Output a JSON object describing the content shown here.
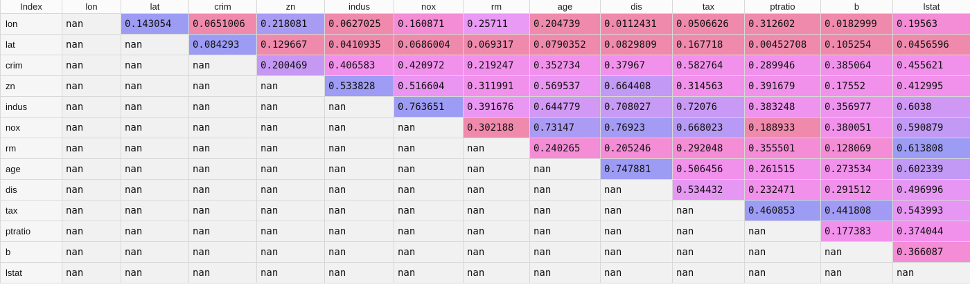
{
  "table": {
    "index_header": "Index",
    "columns": [
      "lon",
      "lat",
      "crim",
      "zn",
      "indus",
      "nox",
      "rm",
      "age",
      "dis",
      "tax",
      "ptratio",
      "b",
      "lstat"
    ],
    "rows": [
      {
        "label": "lon",
        "cells": [
          {
            "v": "nan",
            "c": null
          },
          {
            "v": "0.143054",
            "c": "#9d9cf5"
          },
          {
            "v": "0.0651006",
            "c": "#f08aac"
          },
          {
            "v": "0.218081",
            "c": "#a89bf4"
          },
          {
            "v": "0.0627025",
            "c": "#f08aac"
          },
          {
            "v": "0.160871",
            "c": "#f48cd6"
          },
          {
            "v": "0.25711",
            "c": "#e89af4"
          },
          {
            "v": "0.204739",
            "c": "#f08aac"
          },
          {
            "v": "0.0112431",
            "c": "#f08aac"
          },
          {
            "v": "0.0506626",
            "c": "#f08aac"
          },
          {
            "v": "0.312602",
            "c": "#f08aac"
          },
          {
            "v": "0.0182999",
            "c": "#f08aac"
          },
          {
            "v": "0.19563",
            "c": "#f48cd6"
          }
        ]
      },
      {
        "label": "lat",
        "cells": [
          {
            "v": "nan",
            "c": null
          },
          {
            "v": "nan",
            "c": null
          },
          {
            "v": "0.084293",
            "c": "#9d9cf5"
          },
          {
            "v": "0.129667",
            "c": "#f08aac"
          },
          {
            "v": "0.0410935",
            "c": "#f08aac"
          },
          {
            "v": "0.0686004",
            "c": "#f08aac"
          },
          {
            "v": "0.069317",
            "c": "#f08aac"
          },
          {
            "v": "0.0790352",
            "c": "#f08aac"
          },
          {
            "v": "0.0829809",
            "c": "#f08aac"
          },
          {
            "v": "0.167718",
            "c": "#f08aac"
          },
          {
            "v": "0.00452708",
            "c": "#f08aac"
          },
          {
            "v": "0.105254",
            "c": "#f08aac"
          },
          {
            "v": "0.0456596",
            "c": "#f08aac"
          }
        ]
      },
      {
        "label": "crim",
        "cells": [
          {
            "v": "nan",
            "c": null
          },
          {
            "v": "nan",
            "c": null
          },
          {
            "v": "nan",
            "c": null
          },
          {
            "v": "0.200469",
            "c": "#c698f4"
          },
          {
            "v": "0.406583",
            "c": "#f291ec"
          },
          {
            "v": "0.420972",
            "c": "#f291ec"
          },
          {
            "v": "0.219247",
            "c": "#f291ec"
          },
          {
            "v": "0.352734",
            "c": "#f291ec"
          },
          {
            "v": "0.37967",
            "c": "#f291ec"
          },
          {
            "v": "0.582764",
            "c": "#f291ec"
          },
          {
            "v": "0.289946",
            "c": "#f291ec"
          },
          {
            "v": "0.385064",
            "c": "#f291ec"
          },
          {
            "v": "0.455621",
            "c": "#f291ec"
          }
        ]
      },
      {
        "label": "zn",
        "cells": [
          {
            "v": "nan",
            "c": null
          },
          {
            "v": "nan",
            "c": null
          },
          {
            "v": "nan",
            "c": null
          },
          {
            "v": "nan",
            "c": null
          },
          {
            "v": "0.533828",
            "c": "#9e9cf5"
          },
          {
            "v": "0.516604",
            "c": "#ea95f2"
          },
          {
            "v": "0.311991",
            "c": "#f291ec"
          },
          {
            "v": "0.569537",
            "c": "#ea95f2"
          },
          {
            "v": "0.664408",
            "c": "#c29af5"
          },
          {
            "v": "0.314563",
            "c": "#f291ec"
          },
          {
            "v": "0.391679",
            "c": "#f291ec"
          },
          {
            "v": "0.17552",
            "c": "#f291ec"
          },
          {
            "v": "0.412995",
            "c": "#f291ec"
          }
        ]
      },
      {
        "label": "indus",
        "cells": [
          {
            "v": "nan",
            "c": null
          },
          {
            "v": "nan",
            "c": null
          },
          {
            "v": "nan",
            "c": null
          },
          {
            "v": "nan",
            "c": null
          },
          {
            "v": "nan",
            "c": null
          },
          {
            "v": "0.763651",
            "c": "#9d9cf5"
          },
          {
            "v": "0.391676",
            "c": "#e997f2"
          },
          {
            "v": "0.644779",
            "c": "#d198f4"
          },
          {
            "v": "0.708027",
            "c": "#c69af5"
          },
          {
            "v": "0.72076",
            "c": "#c99af5"
          },
          {
            "v": "0.383248",
            "c": "#ee93ee"
          },
          {
            "v": "0.356977",
            "c": "#ee93ee"
          },
          {
            "v": "0.6038",
            "c": "#cf98f4"
          }
        ]
      },
      {
        "label": "nox",
        "cells": [
          {
            "v": "nan",
            "c": null
          },
          {
            "v": "nan",
            "c": null
          },
          {
            "v": "nan",
            "c": null
          },
          {
            "v": "nan",
            "c": null
          },
          {
            "v": "nan",
            "c": null
          },
          {
            "v": "nan",
            "c": null
          },
          {
            "v": "0.302188",
            "c": "#f08aac"
          },
          {
            "v": "0.73147",
            "c": "#ac9bf5"
          },
          {
            "v": "0.76923",
            "c": "#a49bf5"
          },
          {
            "v": "0.668023",
            "c": "#b79af5"
          },
          {
            "v": "0.188933",
            "c": "#f08aac"
          },
          {
            "v": "0.380051",
            "c": "#f291ec"
          },
          {
            "v": "0.590879",
            "c": "#c29af5"
          }
        ]
      },
      {
        "label": "rm",
        "cells": [
          {
            "v": "nan",
            "c": null
          },
          {
            "v": "nan",
            "c": null
          },
          {
            "v": "nan",
            "c": null
          },
          {
            "v": "nan",
            "c": null
          },
          {
            "v": "nan",
            "c": null
          },
          {
            "v": "nan",
            "c": null
          },
          {
            "v": "nan",
            "c": null
          },
          {
            "v": "0.240265",
            "c": "#f48cd6"
          },
          {
            "v": "0.205246",
            "c": "#f48cd6"
          },
          {
            "v": "0.292048",
            "c": "#f48cd6"
          },
          {
            "v": "0.355501",
            "c": "#f48cd6"
          },
          {
            "v": "0.128069",
            "c": "#f48cd6"
          },
          {
            "v": "0.613808",
            "c": "#9d9cf5"
          }
        ]
      },
      {
        "label": "age",
        "cells": [
          {
            "v": "nan",
            "c": null
          },
          {
            "v": "nan",
            "c": null
          },
          {
            "v": "nan",
            "c": null
          },
          {
            "v": "nan",
            "c": null
          },
          {
            "v": "nan",
            "c": null
          },
          {
            "v": "nan",
            "c": null
          },
          {
            "v": "nan",
            "c": null
          },
          {
            "v": "nan",
            "c": null
          },
          {
            "v": "0.747881",
            "c": "#9d9cf5"
          },
          {
            "v": "0.506456",
            "c": "#f291ec"
          },
          {
            "v": "0.261515",
            "c": "#f291ec"
          },
          {
            "v": "0.273534",
            "c": "#f291ec"
          },
          {
            "v": "0.602339",
            "c": "#c29af5"
          }
        ]
      },
      {
        "label": "dis",
        "cells": [
          {
            "v": "nan",
            "c": null
          },
          {
            "v": "nan",
            "c": null
          },
          {
            "v": "nan",
            "c": null
          },
          {
            "v": "nan",
            "c": null
          },
          {
            "v": "nan",
            "c": null
          },
          {
            "v": "nan",
            "c": null
          },
          {
            "v": "nan",
            "c": null
          },
          {
            "v": "nan",
            "c": null
          },
          {
            "v": "nan",
            "c": null
          },
          {
            "v": "0.534432",
            "c": "#e697f3"
          },
          {
            "v": "0.232471",
            "c": "#f291ec"
          },
          {
            "v": "0.291512",
            "c": "#f291ec"
          },
          {
            "v": "0.496996",
            "c": "#e697f3"
          }
        ]
      },
      {
        "label": "tax",
        "cells": [
          {
            "v": "nan",
            "c": null
          },
          {
            "v": "nan",
            "c": null
          },
          {
            "v": "nan",
            "c": null
          },
          {
            "v": "nan",
            "c": null
          },
          {
            "v": "nan",
            "c": null
          },
          {
            "v": "nan",
            "c": null
          },
          {
            "v": "nan",
            "c": null
          },
          {
            "v": "nan",
            "c": null
          },
          {
            "v": "nan",
            "c": null
          },
          {
            "v": "nan",
            "c": null
          },
          {
            "v": "0.460853",
            "c": "#9d9cf5"
          },
          {
            "v": "0.441808",
            "c": "#a19bf5"
          },
          {
            "v": "0.543993",
            "c": "#e697f3"
          }
        ]
      },
      {
        "label": "ptratio",
        "cells": [
          {
            "v": "nan",
            "c": null
          },
          {
            "v": "nan",
            "c": null
          },
          {
            "v": "nan",
            "c": null
          },
          {
            "v": "nan",
            "c": null
          },
          {
            "v": "nan",
            "c": null
          },
          {
            "v": "nan",
            "c": null
          },
          {
            "v": "nan",
            "c": null
          },
          {
            "v": "nan",
            "c": null
          },
          {
            "v": "nan",
            "c": null
          },
          {
            "v": "nan",
            "c": null
          },
          {
            "v": "nan",
            "c": null
          },
          {
            "v": "0.177383",
            "c": "#f291ec"
          },
          {
            "v": "0.374044",
            "c": "#f291ec"
          }
        ]
      },
      {
        "label": "b",
        "cells": [
          {
            "v": "nan",
            "c": null
          },
          {
            "v": "nan",
            "c": null
          },
          {
            "v": "nan",
            "c": null
          },
          {
            "v": "nan",
            "c": null
          },
          {
            "v": "nan",
            "c": null
          },
          {
            "v": "nan",
            "c": null
          },
          {
            "v": "nan",
            "c": null
          },
          {
            "v": "nan",
            "c": null
          },
          {
            "v": "nan",
            "c": null
          },
          {
            "v": "nan",
            "c": null
          },
          {
            "v": "nan",
            "c": null
          },
          {
            "v": "nan",
            "c": null
          },
          {
            "v": "0.366087",
            "c": "#f48cd6"
          }
        ]
      },
      {
        "label": "lstat",
        "cells": [
          {
            "v": "nan",
            "c": null
          },
          {
            "v": "nan",
            "c": null
          },
          {
            "v": "nan",
            "c": null
          },
          {
            "v": "nan",
            "c": null
          },
          {
            "v": "nan",
            "c": null
          },
          {
            "v": "nan",
            "c": null
          },
          {
            "v": "nan",
            "c": null
          },
          {
            "v": "nan",
            "c": null
          },
          {
            "v": "nan",
            "c": null
          },
          {
            "v": "nan",
            "c": null
          },
          {
            "v": "nan",
            "c": null
          },
          {
            "v": "nan",
            "c": null
          },
          {
            "v": "nan",
            "c": null
          }
        ]
      }
    ]
  }
}
